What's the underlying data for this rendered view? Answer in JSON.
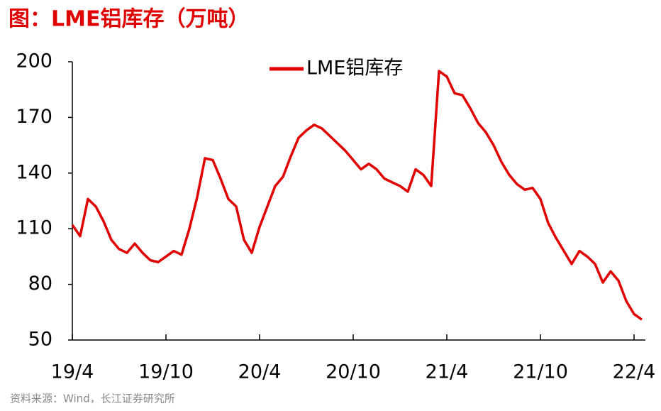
{
  "chart_data": {
    "type": "line",
    "title": "图：LME铝库存（万吨）",
    "source": "资料来源：Wind，长江证券研究所",
    "categories": [
      "19/4",
      null,
      null,
      null,
      null,
      null,
      null,
      null,
      null,
      null,
      null,
      null,
      "19/10",
      null,
      null,
      null,
      null,
      null,
      null,
      null,
      null,
      null,
      null,
      null,
      "20/4",
      null,
      null,
      null,
      null,
      null,
      null,
      null,
      null,
      null,
      null,
      null,
      "20/10",
      null,
      null,
      null,
      null,
      null,
      null,
      null,
      null,
      null,
      null,
      null,
      "21/4",
      null,
      null,
      null,
      null,
      null,
      null,
      null,
      null,
      null,
      null,
      null,
      "21/10",
      null,
      null,
      null,
      null,
      null,
      null,
      null,
      null,
      null,
      null,
      null,
      "22/4",
      null
    ],
    "series": [
      {
        "name": "LME铝库存",
        "color": "#e00000",
        "values": [
          112,
          106,
          126,
          122,
          114,
          104,
          99,
          97,
          102,
          97,
          93,
          92,
          95,
          98,
          96,
          110,
          127,
          148,
          147,
          137,
          126,
          122,
          104,
          97,
          111,
          122,
          133,
          138,
          149,
          159,
          163,
          166,
          164,
          160,
          156,
          152,
          147,
          142,
          145,
          142,
          137,
          135,
          133,
          130,
          142,
          139,
          133,
          195,
          192,
          183,
          182,
          175,
          167,
          162,
          155,
          146,
          139,
          134,
          131,
          132,
          126,
          113,
          105,
          98,
          91,
          98,
          95,
          91,
          81,
          87,
          82,
          71,
          64,
          61
        ]
      }
    ],
    "ylim": [
      50,
      200
    ],
    "yticks": [
      50,
      80,
      110,
      140,
      170,
      200
    ],
    "legend": "top"
  }
}
